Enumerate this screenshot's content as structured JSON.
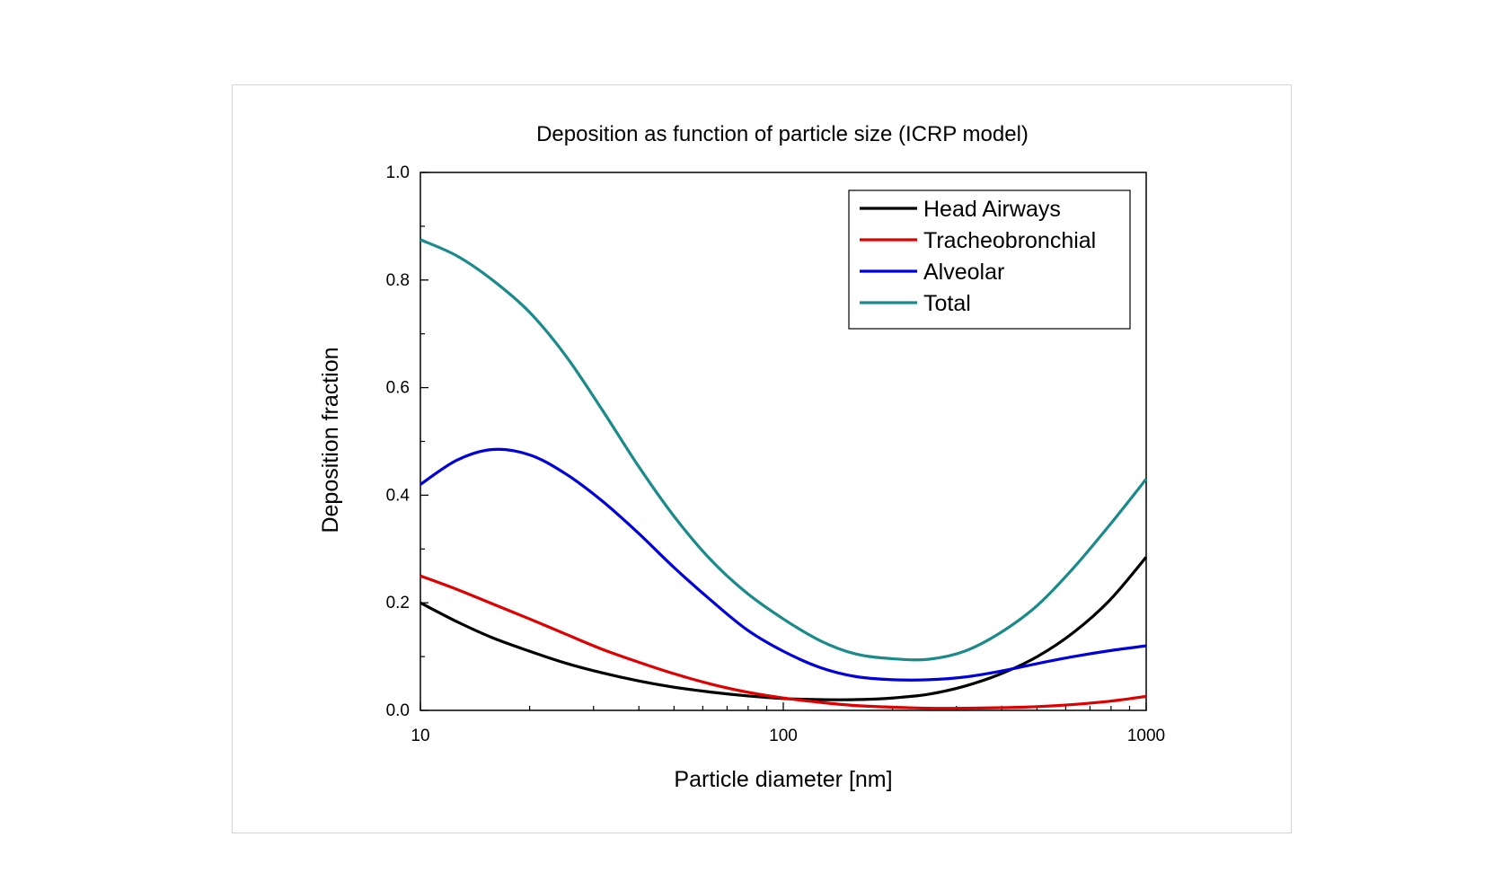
{
  "chart_data": {
    "type": "line",
    "title": "Deposition as function of particle size (ICRP model)",
    "xlabel": "Particle diameter [nm]",
    "ylabel": "Deposition fraction",
    "xscale": "log",
    "xlim": [
      10,
      1000
    ],
    "ylim": [
      0,
      1.0
    ],
    "x_ticks": [
      "10",
      "100",
      "1000"
    ],
    "y_ticks": [
      "0.0",
      "0.2",
      "0.4",
      "0.6",
      "0.8",
      "1.0"
    ],
    "legend_position": "top-right",
    "x": [
      10,
      12.6,
      15.8,
      20,
      25.1,
      31.6,
      39.8,
      50.1,
      63.1,
      79.4,
      100,
      126,
      158,
      200,
      251,
      316,
      398,
      501,
      631,
      794,
      1000
    ],
    "series": [
      {
        "name": "Head Airways",
        "color": "#000000",
        "values": [
          0.2,
          0.165,
          0.135,
          0.11,
          0.088,
          0.07,
          0.055,
          0.043,
          0.034,
          0.027,
          0.022,
          0.02,
          0.02,
          0.023,
          0.03,
          0.045,
          0.068,
          0.1,
          0.145,
          0.205,
          0.285
        ]
      },
      {
        "name": "Tracheobronchial",
        "color": "#e00000",
        "values": [
          0.25,
          0.225,
          0.198,
          0.17,
          0.142,
          0.114,
          0.09,
          0.068,
          0.049,
          0.034,
          0.023,
          0.015,
          0.009,
          0.006,
          0.004,
          0.004,
          0.005,
          0.007,
          0.011,
          0.017,
          0.026
        ]
      },
      {
        "name": "Alveolar",
        "color": "#0000dd",
        "values": [
          0.42,
          0.465,
          0.485,
          0.475,
          0.44,
          0.39,
          0.33,
          0.265,
          0.205,
          0.15,
          0.11,
          0.08,
          0.063,
          0.057,
          0.057,
          0.062,
          0.073,
          0.087,
          0.1,
          0.111,
          0.12
        ]
      },
      {
        "name": "Total",
        "color": "#1a8a8a",
        "values": [
          0.875,
          0.845,
          0.8,
          0.74,
          0.66,
          0.56,
          0.455,
          0.36,
          0.28,
          0.218,
          0.17,
          0.13,
          0.105,
          0.096,
          0.095,
          0.11,
          0.145,
          0.195,
          0.265,
          0.345,
          0.43
        ]
      }
    ]
  }
}
